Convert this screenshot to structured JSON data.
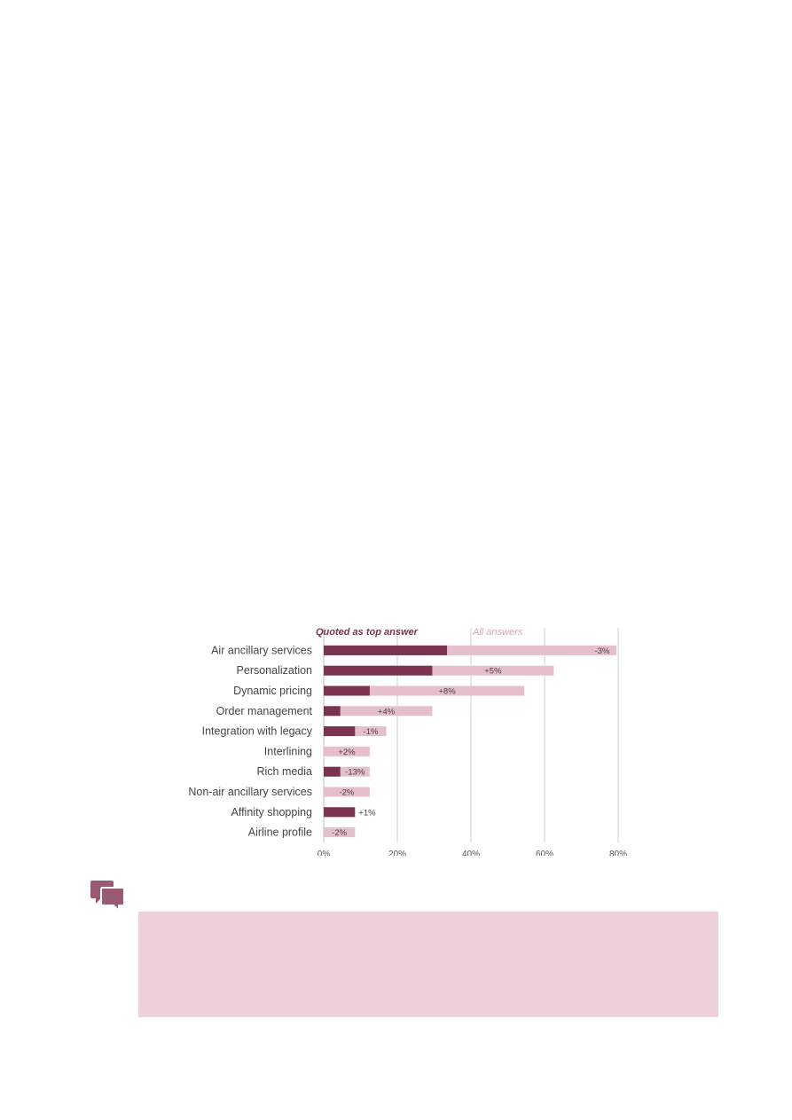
{
  "colors": {
    "top_answer": "#7a3350",
    "all_answers": "#e6bfcc",
    "gridline": "#cfcfcf",
    "comment_box": "#edd1da",
    "icon": "#9b5a73"
  },
  "comment": {
    "icon": "speech-bubbles-icon"
  },
  "chart_data": {
    "type": "bar",
    "orientation": "horizontal",
    "categories": [
      "Air ancillary services",
      "Personalization",
      "Dynamic pricing",
      "Order management",
      "Integration with legacy",
      "Interlining",
      "Rich media",
      "Non-air ancillary services",
      "Affinity shopping",
      "Airline profile"
    ],
    "series": [
      {
        "name": "Quoted as top answer",
        "values": [
          33.5,
          29.5,
          12.5,
          4.5,
          8.5,
          0,
          4.5,
          0,
          8.5,
          0
        ]
      },
      {
        "name": "All answers",
        "values": [
          79.5,
          62.5,
          54.5,
          29.5,
          17,
          12.5,
          12.5,
          12.5,
          8.5,
          8.5
        ]
      }
    ],
    "data_labels": [
      "-3%",
      "+5%",
      "+8%",
      "+4%",
      "-1%",
      "+2%",
      "-13%",
      "-2%",
      "+1%",
      "-2%"
    ],
    "xlim": [
      0,
      80
    ],
    "x_ticks": [
      "0%",
      "20%",
      "40%",
      "60%",
      "80%"
    ],
    "title": "",
    "xlabel": "",
    "ylabel": "",
    "grid": true,
    "legend_placement": "top"
  }
}
